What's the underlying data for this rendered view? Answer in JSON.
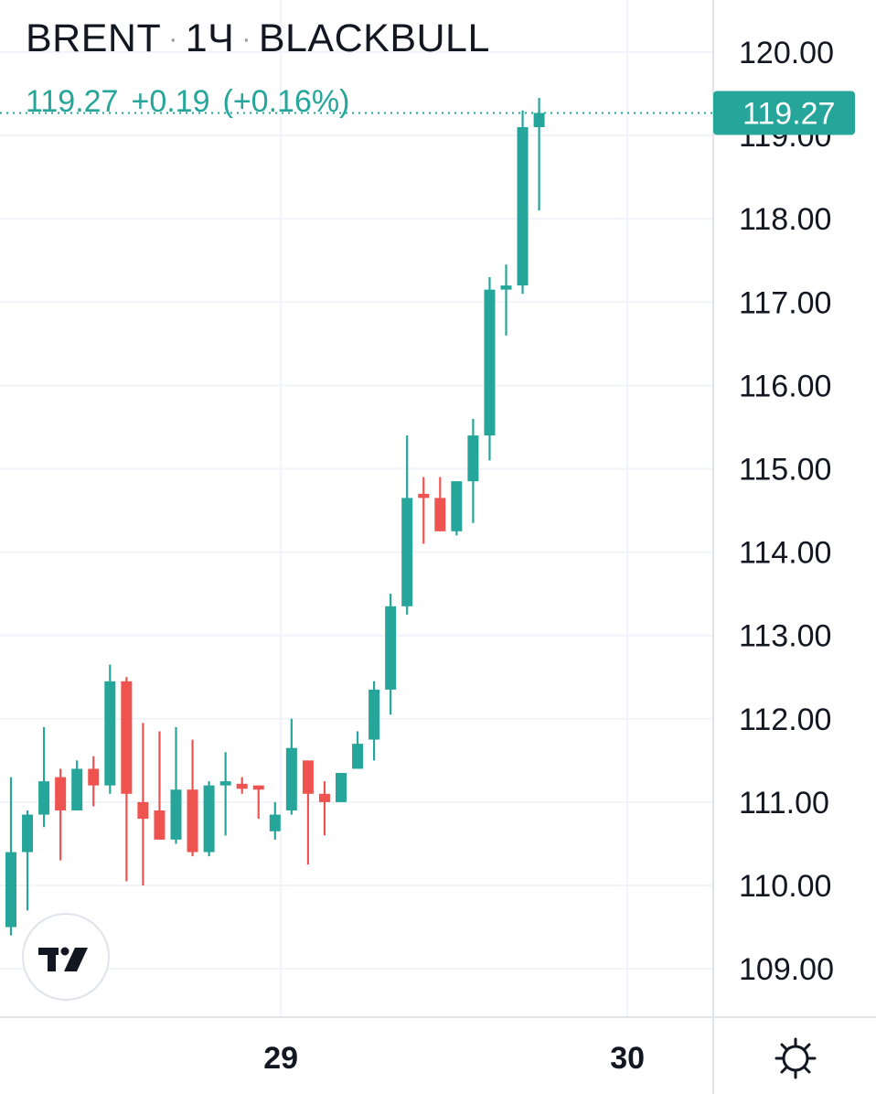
{
  "header": {
    "symbol": "BRENT",
    "interval": "1Ч",
    "source": "BLACKBULL",
    "separator": "·"
  },
  "quote": {
    "last": "119.27",
    "change": "+0.19",
    "change_pct": "(+0.16%)"
  },
  "icons": {
    "logo": "tradingview-logo-icon",
    "settings": "gear-icon"
  },
  "colors": {
    "up": "#26a69a",
    "down": "#ef5350",
    "grid": "#f0f3fa",
    "axis_line": "#e0e3eb",
    "text": "#131722"
  },
  "chart_data": {
    "type": "candlestick",
    "ylim": [
      108.4,
      120.6
    ],
    "yticks": [
      "120.00",
      "119.00",
      "118.00",
      "117.00",
      "116.00",
      "115.00",
      "114.00",
      "113.00",
      "112.00",
      "111.00",
      "110.00",
      "109.00"
    ],
    "xticks": [
      {
        "label": "29",
        "index": 16.35
      },
      {
        "label": "30",
        "index": 37.35
      }
    ],
    "last_price": 119.27,
    "last_price_label": "119.27",
    "grid": true,
    "candles": [
      {
        "o": 109.5,
        "h": 111.3,
        "l": 109.4,
        "c": 110.4
      },
      {
        "o": 110.4,
        "h": 110.9,
        "l": 109.7,
        "c": 110.85
      },
      {
        "o": 110.85,
        "h": 111.9,
        "l": 110.7,
        "c": 111.25
      },
      {
        "o": 111.3,
        "h": 111.4,
        "l": 110.3,
        "c": 110.9
      },
      {
        "o": 110.9,
        "h": 111.5,
        "l": 110.9,
        "c": 111.4
      },
      {
        "o": 111.4,
        "h": 111.55,
        "l": 110.95,
        "c": 111.2
      },
      {
        "o": 111.2,
        "h": 112.65,
        "l": 111.1,
        "c": 112.45
      },
      {
        "o": 112.45,
        "h": 112.5,
        "l": 110.05,
        "c": 111.1
      },
      {
        "o": 111.0,
        "h": 111.95,
        "l": 110.0,
        "c": 110.8
      },
      {
        "o": 110.9,
        "h": 111.85,
        "l": 110.55,
        "c": 110.55
      },
      {
        "o": 110.55,
        "h": 111.9,
        "l": 110.5,
        "c": 111.15
      },
      {
        "o": 111.15,
        "h": 111.75,
        "l": 110.35,
        "c": 110.4
      },
      {
        "o": 110.4,
        "h": 111.25,
        "l": 110.35,
        "c": 111.2
      },
      {
        "o": 111.2,
        "h": 111.6,
        "l": 110.6,
        "c": 111.25
      },
      {
        "o": 111.22,
        "h": 111.3,
        "l": 111.1,
        "c": 111.16
      },
      {
        "o": 111.2,
        "h": 111.2,
        "l": 110.8,
        "c": 111.15
      },
      {
        "o": 110.65,
        "h": 111.0,
        "l": 110.55,
        "c": 110.85
      },
      {
        "o": 110.9,
        "h": 112.0,
        "l": 110.85,
        "c": 111.65
      },
      {
        "o": 111.5,
        "h": 111.5,
        "l": 110.25,
        "c": 111.1
      },
      {
        "o": 111.1,
        "h": 111.25,
        "l": 110.6,
        "c": 111.0
      },
      {
        "o": 111.0,
        "h": 111.35,
        "l": 111.0,
        "c": 111.35
      },
      {
        "o": 111.4,
        "h": 111.85,
        "l": 111.4,
        "c": 111.7
      },
      {
        "o": 111.75,
        "h": 112.45,
        "l": 111.5,
        "c": 112.35
      },
      {
        "o": 112.35,
        "h": 113.5,
        "l": 112.05,
        "c": 113.35
      },
      {
        "o": 113.35,
        "h": 115.4,
        "l": 113.25,
        "c": 114.65
      },
      {
        "o": 114.7,
        "h": 114.9,
        "l": 114.1,
        "c": 114.65
      },
      {
        "o": 114.65,
        "h": 114.9,
        "l": 114.25,
        "c": 114.25
      },
      {
        "o": 114.25,
        "h": 114.85,
        "l": 114.2,
        "c": 114.85
      },
      {
        "o": 114.85,
        "h": 115.6,
        "l": 114.35,
        "c": 115.4
      },
      {
        "o": 115.4,
        "h": 117.3,
        "l": 115.1,
        "c": 117.15
      },
      {
        "o": 117.15,
        "h": 117.45,
        "l": 116.6,
        "c": 117.2
      },
      {
        "o": 117.2,
        "h": 119.3,
        "l": 117.1,
        "c": 119.1
      },
      {
        "o": 119.1,
        "h": 119.45,
        "l": 118.1,
        "c": 119.27
      }
    ]
  }
}
